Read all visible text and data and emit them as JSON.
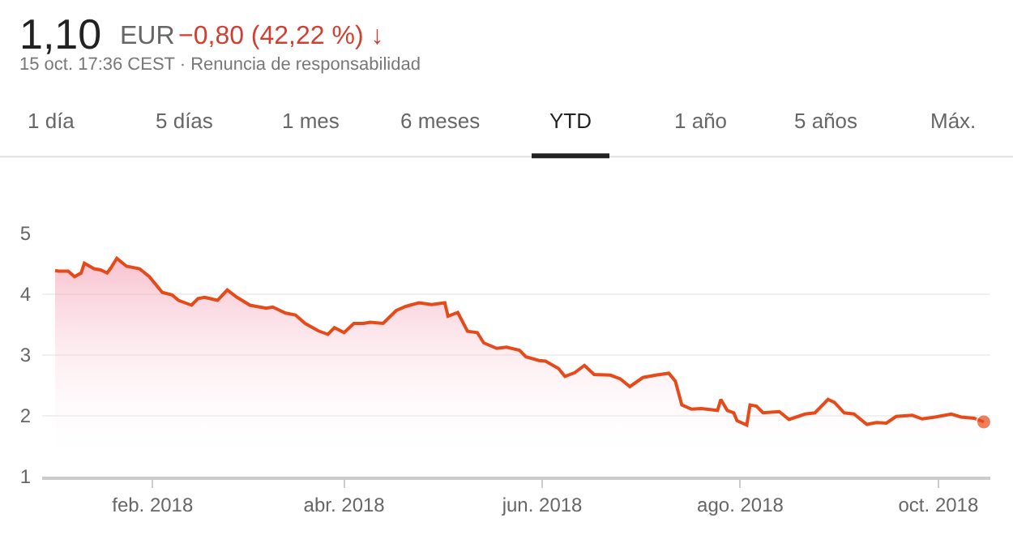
{
  "chart_data": {
    "type": "area",
    "title": "1,10",
    "subtitle": "15 oct. 17:36 CEST · Renuncia de responsabilidad",
    "annotations": [
      "EUR",
      "−0,80 (42,22 %) ↓",
      "1 día",
      "5 días",
      "1 mes",
      "6 meses",
      "YTD",
      "1 año",
      "5 años",
      "Máx."
    ],
    "x": [
      "2018-01-02",
      "2018-01-03",
      "2018-01-06",
      "2018-01-08",
      "2018-01-10",
      "2018-01-11",
      "2018-01-14",
      "2018-01-16",
      "2018-01-18",
      "2018-01-19",
      "2018-01-21",
      "2018-01-24",
      "2018-01-28",
      "2018-01-31",
      "2018-02-04",
      "2018-02-07",
      "2018-02-09",
      "2018-02-13",
      "2018-02-15",
      "2018-02-17",
      "2018-02-21",
      "2018-02-24",
      "2018-02-27",
      "2018-03-03",
      "2018-03-08",
      "2018-03-10",
      "2018-03-14",
      "2018-03-17",
      "2018-03-20",
      "2018-03-24",
      "2018-03-27",
      "2018-03-29",
      "2018-04-01",
      "2018-04-04",
      "2018-04-07",
      "2018-04-09",
      "2018-04-13",
      "2018-04-17",
      "2018-04-20",
      "2018-04-24",
      "2018-04-28",
      "2018-05-02",
      "2018-05-03",
      "2018-05-06",
      "2018-05-09",
      "2018-05-12",
      "2018-05-14",
      "2018-05-18",
      "2018-05-21",
      "2018-05-25",
      "2018-05-27",
      "2018-05-31",
      "2018-06-02",
      "2018-06-06",
      "2018-06-08",
      "2018-06-11",
      "2018-06-14",
      "2018-06-17",
      "2018-06-22",
      "2018-06-25",
      "2018-06-28",
      "2018-07-02",
      "2018-07-06",
      "2018-07-10",
      "2018-07-12",
      "2018-07-14",
      "2018-07-17",
      "2018-07-20",
      "2018-07-25",
      "2018-07-26",
      "2018-07-28",
      "2018-07-30",
      "2018-07-31",
      "2018-08-03",
      "2018-08-04",
      "2018-08-06",
      "2018-08-08",
      "2018-08-13",
      "2018-08-16",
      "2018-08-21",
      "2018-08-24",
      "2018-08-28",
      "2018-08-30",
      "2018-09-02",
      "2018-09-05",
      "2018-09-09",
      "2018-09-12",
      "2018-09-15",
      "2018-09-18",
      "2018-09-23",
      "2018-09-26",
      "2018-09-30",
      "2018-10-05",
      "2018-10-08",
      "2018-10-12",
      "2018-10-15"
    ],
    "series": [
      {
        "color": "#e64a19",
        "values": [
          4.39,
          4.38,
          4.38,
          4.29,
          4.35,
          4.51,
          4.42,
          4.4,
          4.35,
          4.42,
          4.59,
          4.46,
          4.42,
          4.29,
          4.03,
          3.99,
          3.9,
          3.82,
          3.93,
          3.95,
          3.9,
          4.07,
          3.95,
          3.82,
          3.77,
          3.79,
          3.69,
          3.66,
          3.52,
          3.4,
          3.34,
          3.45,
          3.37,
          3.52,
          3.52,
          3.54,
          3.52,
          3.73,
          3.8,
          3.86,
          3.83,
          3.86,
          3.64,
          3.7,
          3.39,
          3.37,
          3.2,
          3.11,
          3.13,
          3.08,
          2.97,
          2.91,
          2.9,
          2.78,
          2.65,
          2.71,
          2.83,
          2.68,
          2.67,
          2.61,
          2.48,
          2.63,
          2.67,
          2.7,
          2.57,
          2.18,
          2.11,
          2.12,
          2.09,
          2.27,
          2.09,
          2.05,
          1.92,
          1.85,
          2.18,
          2.16,
          2.05,
          2.07,
          1.94,
          2.03,
          2.05,
          2.27,
          2.22,
          2.05,
          2.03,
          1.86,
          1.89,
          1.88,
          1.99,
          2.01,
          1.95,
          1.98,
          2.03,
          1.98,
          1.96,
          1.9
        ]
      }
    ],
    "xlim": [
      "2017-12-29",
      "2018-10-17"
    ],
    "xticks": [
      {
        "value": "2018-02-01",
        "label": "feb. 2018"
      },
      {
        "value": "2018-04-01",
        "label": "abr. 2018"
      },
      {
        "value": "2018-06-01",
        "label": "jun. 2018"
      },
      {
        "value": "2018-08-01",
        "label": "ago. 2018"
      },
      {
        "value": "2018-10-01",
        "label": "oct. 2018"
      }
    ],
    "ylim": [
      1,
      5
    ],
    "yticks": [
      1,
      2,
      3,
      4,
      5
    ],
    "grid": "y"
  }
}
